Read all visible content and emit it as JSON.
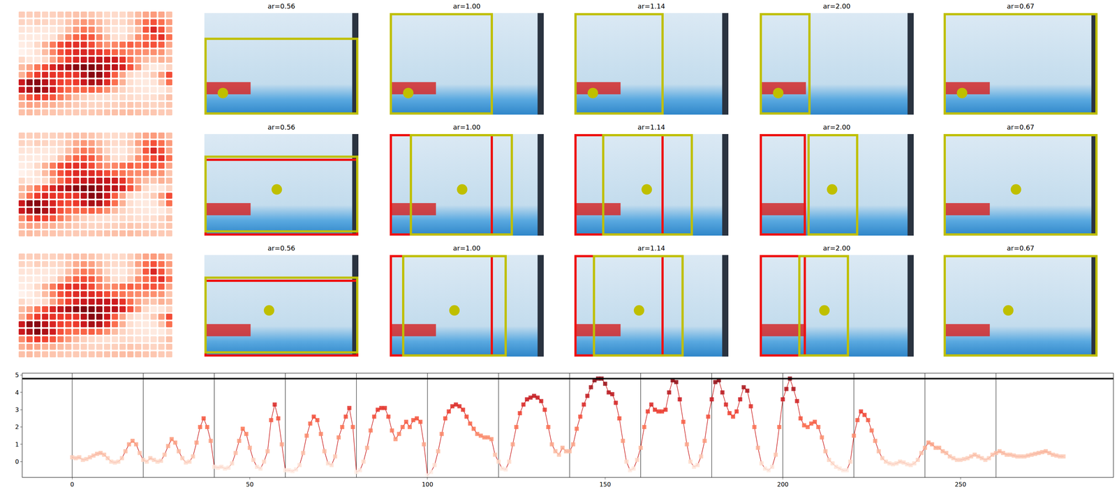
{
  "panels": {
    "image_size": [
      100,
      66
    ],
    "rows": [
      {
        "dot": [
          12,
          52
        ],
        "crops": [
          {
            "title": "ar=0.56",
            "boxes": [
              {
                "color": "#bfbf00",
                "box": [
                  0,
                  16,
                  100,
                  66
                ]
              }
            ]
          },
          {
            "title": "ar=1.00",
            "boxes": [
              {
                "color": "#bfbf00",
                "box": [
                  0,
                  0,
                  67,
                  66
                ]
              }
            ]
          },
          {
            "title": "ar=1.14",
            "boxes": [
              {
                "color": "#bfbf00",
                "box": [
                  0,
                  0,
                  58,
                  66
                ]
              }
            ]
          },
          {
            "title": "ar=2.00",
            "boxes": [
              {
                "color": "#bfbf00",
                "box": [
                  0,
                  0,
                  33,
                  66
                ]
              }
            ]
          },
          {
            "title": "ar=0.67",
            "boxes": [
              {
                "color": "#bfbf00",
                "box": [
                  0,
                  0,
                  100,
                  66
                ]
              }
            ]
          }
        ]
      },
      {
        "dot": [
          47,
          36
        ],
        "crops": [
          {
            "title": "ar=0.56",
            "boxes": [
              {
                "color": "#ee1111",
                "box": [
                  0,
                  16,
                  100,
                  66
                ]
              },
              {
                "color": "#bfbf00",
                "box": [
                  0,
                  14,
                  100,
                  64
                ]
              }
            ]
          },
          {
            "title": "ar=1.00",
            "boxes": [
              {
                "color": "#ee1111",
                "box": [
                  0,
                  0,
                  67,
                  66
                ]
              },
              {
                "color": "#bfbf00",
                "box": [
                  13,
                  0,
                  80,
                  66
                ]
              }
            ]
          },
          {
            "title": "ar=1.14",
            "boxes": [
              {
                "color": "#ee1111",
                "box": [
                  0,
                  0,
                  58,
                  66
                ]
              },
              {
                "color": "#bfbf00",
                "box": [
                  18,
                  0,
                  77,
                  66
                ]
              }
            ]
          },
          {
            "title": "ar=2.00",
            "boxes": [
              {
                "color": "#ee1111",
                "box": [
                  0,
                  0,
                  30,
                  66
                ]
              },
              {
                "color": "#bfbf00",
                "box": [
                  31,
                  0,
                  64,
                  66
                ]
              }
            ]
          },
          {
            "title": "ar=0.67",
            "boxes": [
              {
                "color": "#bfbf00",
                "box": [
                  0,
                  0,
                  100,
                  66
                ]
              }
            ]
          }
        ]
      },
      {
        "dot": [
          42,
          36
        ],
        "crops": [
          {
            "title": "ar=0.56",
            "boxes": [
              {
                "color": "#ee1111",
                "box": [
                  0,
                  16,
                  100,
                  66
                ]
              },
              {
                "color": "#bfbf00",
                "box": [
                  0,
                  14,
                  100,
                  64
                ]
              }
            ]
          },
          {
            "title": "ar=1.00",
            "boxes": [
              {
                "color": "#ee1111",
                "box": [
                  0,
                  0,
                  67,
                  66
                ]
              },
              {
                "color": "#bfbf00",
                "box": [
                  8,
                  0,
                  76,
                  66
                ]
              }
            ]
          },
          {
            "title": "ar=1.14",
            "boxes": [
              {
                "color": "#ee1111",
                "box": [
                  0,
                  0,
                  58,
                  66
                ]
              },
              {
                "color": "#bfbf00",
                "box": [
                  12,
                  0,
                  71,
                  66
                ]
              }
            ]
          },
          {
            "title": "ar=2.00",
            "boxes": [
              {
                "color": "#ee1111",
                "box": [
                  0,
                  0,
                  30,
                  66
                ]
              },
              {
                "color": "#bfbf00",
                "box": [
                  25,
                  0,
                  58,
                  66
                ]
              }
            ]
          },
          {
            "title": "ar=0.67",
            "boxes": [
              {
                "color": "#bfbf00",
                "box": [
                  0,
                  0,
                  100,
                  66
                ]
              }
            ]
          }
        ]
      }
    ]
  },
  "chart_data": {
    "type": "line",
    "color": "#cc2222",
    "marker": "square",
    "grid": false,
    "xlim": [
      -14,
      293
    ],
    "ylim": [
      -0.9,
      5.1
    ],
    "xticks": [
      0,
      50,
      100,
      150,
      200,
      250
    ],
    "yticks": [
      0,
      1,
      2,
      3,
      4,
      5
    ],
    "vlines": [
      0,
      20,
      40,
      60,
      80,
      100,
      120,
      140,
      160,
      180,
      200,
      220,
      240,
      260
    ],
    "hline": 4.8,
    "x": [
      0,
      1,
      2,
      3,
      4,
      5,
      6,
      7,
      8,
      9,
      10,
      11,
      12,
      13,
      14,
      15,
      16,
      17,
      18,
      19,
      20,
      21,
      22,
      23,
      24,
      25,
      26,
      27,
      28,
      29,
      30,
      31,
      32,
      33,
      34,
      35,
      36,
      37,
      38,
      39,
      40,
      41,
      42,
      43,
      44,
      45,
      46,
      47,
      48,
      49,
      50,
      51,
      52,
      53,
      54,
      55,
      56,
      57,
      58,
      59,
      60,
      61,
      62,
      63,
      64,
      65,
      66,
      67,
      68,
      69,
      70,
      71,
      72,
      73,
      74,
      75,
      76,
      77,
      78,
      79,
      80,
      81,
      82,
      83,
      84,
      85,
      86,
      87,
      88,
      89,
      90,
      91,
      92,
      93,
      94,
      95,
      96,
      97,
      98,
      99,
      100,
      101,
      102,
      103,
      104,
      105,
      106,
      107,
      108,
      109,
      110,
      111,
      112,
      113,
      114,
      115,
      116,
      117,
      118,
      119,
      120,
      121,
      122,
      123,
      124,
      125,
      126,
      127,
      128,
      129,
      130,
      131,
      132,
      133,
      134,
      135,
      136,
      137,
      138,
      139,
      140,
      141,
      142,
      143,
      144,
      145,
      146,
      147,
      148,
      149,
      150,
      151,
      152,
      153,
      154,
      155,
      156,
      157,
      158,
      159,
      160,
      161,
      162,
      163,
      164,
      165,
      166,
      167,
      168,
      169,
      170,
      171,
      172,
      173,
      174,
      175,
      176,
      177,
      178,
      179,
      180,
      181,
      182,
      183,
      184,
      185,
      186,
      187,
      188,
      189,
      190,
      191,
      192,
      193,
      194,
      195,
      196,
      197,
      198,
      199,
      200,
      201,
      202,
      203,
      204,
      205,
      206,
      207,
      208,
      209,
      210,
      211,
      212,
      213,
      214,
      215,
      216,
      217,
      218,
      219,
      220,
      221,
      222,
      223,
      224,
      225,
      226,
      227,
      228,
      229,
      230,
      231,
      232,
      233,
      234,
      235,
      236,
      237,
      238,
      239,
      240,
      241,
      242,
      243,
      244,
      245,
      246,
      247,
      248,
      249,
      250,
      251,
      252,
      253,
      254,
      255,
      256,
      257,
      258,
      259,
      260,
      261,
      262,
      263,
      264,
      265,
      266,
      267,
      268,
      269,
      270,
      271,
      272,
      273,
      274,
      275,
      276,
      277,
      278,
      279
    ],
    "values": [
      0.25,
      0.2,
      0.25,
      0.1,
      0.15,
      0.25,
      0.35,
      0.45,
      0.5,
      0.4,
      0.2,
      0.0,
      -0.05,
      0.0,
      0.2,
      0.6,
      1.0,
      1.2,
      1.0,
      0.5,
      0.1,
      0.0,
      0.2,
      0.1,
      0.0,
      0.05,
      0.4,
      0.9,
      1.3,
      1.1,
      0.6,
      0.2,
      -0.05,
      0.0,
      0.3,
      1.1,
      2.0,
      2.5,
      2.0,
      1.2,
      -0.3,
      -0.35,
      -0.3,
      -0.4,
      -0.35,
      -0.1,
      0.5,
      1.2,
      1.9,
      1.6,
      0.8,
      0.1,
      -0.3,
      -0.4,
      0.0,
      0.6,
      2.4,
      3.3,
      2.5,
      1.0,
      -0.5,
      -0.5,
      -0.55,
      -0.45,
      -0.2,
      0.5,
      1.5,
      2.2,
      2.6,
      2.4,
      1.6,
      0.6,
      -0.1,
      -0.2,
      0.3,
      1.4,
      2.0,
      2.6,
      3.1,
      2.0,
      -0.6,
      -0.5,
      0.0,
      0.8,
      1.8,
      2.6,
      3.0,
      3.1,
      3.1,
      2.6,
      1.8,
      1.3,
      1.6,
      2.0,
      2.3,
      2.0,
      2.4,
      2.5,
      2.3,
      1.0,
      -0.8,
      -0.6,
      -0.2,
      0.6,
      1.6,
      2.5,
      2.9,
      3.2,
      3.3,
      3.2,
      3.0,
      2.6,
      2.2,
      1.9,
      1.6,
      1.5,
      1.4,
      1.4,
      1.3,
      0.4,
      0.0,
      -0.4,
      -0.45,
      0.0,
      1.0,
      2.0,
      2.8,
      3.3,
      3.6,
      3.7,
      3.8,
      3.7,
      3.5,
      3.0,
      2.0,
      1.0,
      0.6,
      0.4,
      0.8,
      0.6,
      0.6,
      1.0,
      1.9,
      2.6,
      3.3,
      3.8,
      4.3,
      4.7,
      4.8,
      4.8,
      4.5,
      4.0,
      3.9,
      3.4,
      2.5,
      1.2,
      0.0,
      -0.5,
      -0.4,
      0.1,
      0.8,
      2.0,
      2.9,
      3.3,
      3.0,
      2.9,
      2.9,
      3.0,
      4.0,
      4.7,
      4.6,
      3.6,
      2.3,
      1.0,
      0.0,
      -0.3,
      -0.2,
      0.3,
      1.2,
      2.6,
      3.6,
      4.6,
      4.7,
      4.0,
      3.3,
      2.8,
      2.6,
      2.9,
      3.6,
      4.3,
      4.1,
      3.2,
      2.0,
      0.8,
      -0.1,
      -0.4,
      -0.5,
      -0.3,
      0.4,
      2.0,
      3.6,
      4.2,
      4.8,
      4.2,
      3.5,
      2.5,
      2.1,
      2.0,
      2.2,
      2.3,
      2.0,
      1.4,
      0.6,
      0.1,
      -0.1,
      -0.3,
      -0.4,
      -0.5,
      -0.5,
      0.0,
      1.5,
      2.4,
      2.9,
      2.7,
      2.4,
      1.8,
      1.2,
      0.6,
      0.2,
      0.0,
      -0.1,
      -0.15,
      -0.1,
      0.0,
      -0.05,
      -0.15,
      -0.2,
      -0.1,
      0.1,
      0.5,
      0.8,
      1.1,
      1.0,
      0.8,
      0.8,
      0.6,
      0.5,
      0.3,
      0.2,
      0.1,
      0.1,
      0.15,
      0.2,
      0.3,
      0.4,
      0.3,
      0.2,
      0.1,
      0.2,
      0.4,
      0.5,
      0.6,
      0.5,
      0.4,
      0.4,
      0.35,
      0.3,
      0.3,
      0.3,
      0.35,
      0.4,
      0.45,
      0.5,
      0.55,
      0.6,
      0.5,
      0.4,
      0.35,
      0.3,
      0.3
    ]
  }
}
